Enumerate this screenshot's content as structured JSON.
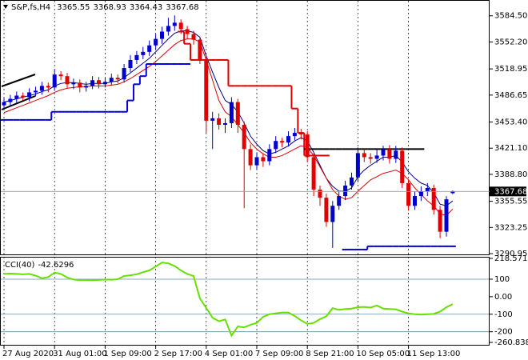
{
  "chart_data": [
    {
      "type": "candlestick",
      "title": "S&P,fs,H4",
      "categories": [
        "27 Aug 2020",
        null,
        null,
        null,
        null,
        null,
        null,
        null,
        "31 Aug 01:00",
        null,
        null,
        null,
        null,
        null,
        null,
        null,
        "1 Sep 09:00",
        null,
        null,
        null,
        null,
        null,
        null,
        null,
        "2 Sep 17:00",
        null,
        null,
        null,
        null,
        null,
        null,
        null,
        "4 Sep 01:00",
        null,
        null,
        null,
        null,
        null,
        null,
        null,
        "7 Sep 09:00",
        null,
        null,
        null,
        null,
        null,
        null,
        null,
        "8 Sep 21:00",
        null,
        null,
        null,
        null,
        null,
        null,
        null,
        "10 Sep 05:00",
        null,
        null,
        null,
        null,
        null,
        null,
        null,
        "11 Sep 13:00",
        null,
        null,
        null,
        null,
        null,
        null,
        null
      ],
      "open": [
        3474,
        3478,
        3482,
        3486,
        3484,
        3490,
        3492,
        3498,
        3496,
        3512,
        3510,
        3500,
        3502,
        3496,
        3498,
        3505,
        3500,
        3503,
        3508,
        3506,
        3520,
        3530,
        3536,
        3540,
        3548,
        3556,
        3565,
        3572,
        3576,
        3568,
        3562,
        3555,
        3530,
        3455,
        3458,
        3450,
        3452,
        3478,
        3450,
        3420,
        3400,
        3410,
        3405,
        3420,
        3430,
        3428,
        3436,
        3440,
        3438,
        3410,
        3370,
        3360,
        3330,
        3350,
        3362,
        3375,
        3385,
        3415,
        3410,
        3408,
        3412,
        3420,
        3408,
        3418,
        3378,
        3350,
        3362,
        3368,
        3372,
        3345,
        3318,
        3365.55
      ],
      "high": [
        3483,
        3487,
        3491,
        3490,
        3495,
        3497,
        3503,
        3502,
        3518,
        3516,
        3514,
        3507,
        3506,
        3503,
        3510,
        3509,
        3508,
        3513,
        3512,
        3525,
        3536,
        3541,
        3546,
        3554,
        3562,
        3571,
        3582,
        3585,
        3580,
        3572,
        3566,
        3558,
        3534,
        3466,
        3464,
        3458,
        3484,
        3482,
        3454,
        3426,
        3416,
        3415,
        3426,
        3436,
        3434,
        3442,
        3446,
        3445,
        3442,
        3414,
        3375,
        3365,
        3356,
        3368,
        3381,
        3391,
        3422,
        3420,
        3415,
        3420,
        3424,
        3425,
        3424,
        3422,
        3382,
        3368,
        3374,
        3378,
        3376,
        3350,
        3362,
        3368.93
      ],
      "low": [
        3469,
        3473,
        3477,
        3480,
        3479,
        3485,
        3487,
        3490,
        3492,
        3505,
        3495,
        3494,
        3490,
        3491,
        3494,
        3495,
        3496,
        3499,
        3501,
        3502,
        3515,
        3525,
        3531,
        3535,
        3543,
        3550,
        3560,
        3566,
        3562,
        3556,
        3549,
        3525,
        3440,
        3420,
        3444,
        3440,
        3446,
        3440,
        3347,
        3394,
        3395,
        3398,
        3400,
        3415,
        3422,
        3423,
        3431,
        3432,
        3404,
        3362,
        3350,
        3324,
        3298,
        3345,
        3357,
        3370,
        3380,
        3404,
        3402,
        3403,
        3406,
        3402,
        3403,
        3372,
        3344,
        3345,
        3356,
        3362,
        3339,
        3310,
        3312,
        3364.43
      ],
      "close": [
        3478,
        3482,
        3486,
        3484,
        3490,
        3492,
        3498,
        3496,
        3512,
        3510,
        3500,
        3502,
        3496,
        3498,
        3505,
        3500,
        3503,
        3508,
        3506,
        3520,
        3530,
        3536,
        3540,
        3548,
        3556,
        3565,
        3572,
        3576,
        3568,
        3562,
        3555,
        3530,
        3455,
        3458,
        3450,
        3452,
        3478,
        3450,
        3420,
        3400,
        3410,
        3405,
        3420,
        3430,
        3428,
        3436,
        3440,
        3438,
        3410,
        3370,
        3360,
        3330,
        3350,
        3362,
        3375,
        3385,
        3415,
        3410,
        3408,
        3412,
        3420,
        3408,
        3418,
        3378,
        3350,
        3362,
        3368,
        3372,
        3345,
        3318,
        3358,
        3367.68
      ],
      "up_color": "#0000cd",
      "down_color": "#e00000",
      "overlays": [
        {
          "style": "line",
          "color": "#000080",
          "width": 1,
          "values": [
            3478,
            3480,
            3482,
            3484,
            3486,
            3488,
            3491,
            3493,
            3498,
            3501,
            3502,
            3502,
            3501,
            3500,
            3501,
            3501,
            3501,
            3503,
            3504,
            3508,
            3514,
            3520,
            3526,
            3532,
            3540,
            3548,
            3556,
            3563,
            3566,
            3566,
            3564,
            3558,
            3535,
            3515,
            3496,
            3480,
            3475,
            3466,
            3452,
            3436,
            3426,
            3418,
            3414,
            3416,
            3420,
            3424,
            3430,
            3434,
            3430,
            3416,
            3400,
            3384,
            3374,
            3368,
            3368,
            3372,
            3386,
            3394,
            3400,
            3405,
            3410,
            3410,
            3412,
            3404,
            3392,
            3384,
            3378,
            3375,
            3366,
            3352,
            3350,
            3356
          ]
        },
        {
          "style": "line",
          "color": "#e00000",
          "width": 1,
          "values": [
            3465,
            3468,
            3471,
            3474,
            3477,
            3480,
            3483,
            3486,
            3490,
            3493,
            3495,
            3496,
            3497,
            3497,
            3498,
            3498,
            3498,
            3499,
            3500,
            3503,
            3507,
            3512,
            3517,
            3522,
            3528,
            3535,
            3542,
            3549,
            3554,
            3556,
            3556,
            3552,
            3530,
            3505,
            3480,
            3466,
            3460,
            3450,
            3440,
            3428,
            3420,
            3414,
            3410,
            3410,
            3412,
            3416,
            3420,
            3424,
            3422,
            3412,
            3398,
            3384,
            3370,
            3362,
            3358,
            3360,
            3368,
            3375,
            3382,
            3386,
            3390,
            3392,
            3394,
            3390,
            3382,
            3372,
            3364,
            3356,
            3350,
            3340,
            3338,
            3346
          ]
        },
        {
          "style": "step",
          "color": "#e00000",
          "width": 2,
          "values": [
            null,
            null,
            null,
            null,
            null,
            null,
            null,
            null,
            null,
            null,
            null,
            null,
            null,
            null,
            null,
            null,
            null,
            null,
            null,
            null,
            null,
            null,
            null,
            null,
            null,
            null,
            null,
            null,
            3565,
            3550,
            3530,
            3530,
            3530,
            3530,
            3530,
            3530,
            3498,
            3498,
            3498,
            3498,
            3498,
            3498,
            3498,
            3498,
            3498,
            3498,
            3470,
            3440,
            3412,
            3412,
            3412,
            3412,
            null,
            null,
            null,
            null,
            null,
            null,
            null,
            null,
            null,
            null,
            null,
            null,
            null,
            null,
            null,
            null,
            null,
            null,
            null,
            null
          ]
        },
        {
          "style": "step",
          "color": "#0000e0",
          "width": 2,
          "values": [
            3456,
            3456,
            3456,
            3456,
            3456,
            3456,
            3456,
            3456,
            3466,
            3466,
            3466,
            3466,
            3466,
            3466,
            3466,
            3466,
            3466,
            3466,
            3466,
            3466,
            3480,
            3500,
            3510,
            3525,
            3525,
            3525,
            3525,
            3525,
            3525,
            3525,
            null,
            null,
            null,
            null,
            null,
            null,
            null,
            null,
            null,
            null,
            null,
            null,
            null,
            null,
            null,
            null,
            null,
            null,
            null,
            null,
            null,
            null,
            null,
            null,
            3296,
            3296,
            3296,
            3296,
            3300,
            3300,
            3300,
            3300,
            3300,
            3300,
            3300,
            3300,
            3300,
            3300,
            3300,
            3300,
            3300,
            3300
          ]
        },
        {
          "style": "step",
          "color": "#000000",
          "width": 2,
          "values": [
            null,
            null,
            null,
            null,
            null,
            null,
            null,
            null,
            null,
            null,
            null,
            null,
            null,
            null,
            null,
            null,
            null,
            null,
            null,
            null,
            null,
            null,
            null,
            null,
            null,
            null,
            null,
            null,
            null,
            null,
            null,
            null,
            null,
            null,
            null,
            null,
            null,
            null,
            null,
            null,
            null,
            null,
            null,
            null,
            null,
            null,
            null,
            null,
            3420,
            3420,
            3420,
            3420,
            3420,
            3420,
            3420,
            3420,
            3420,
            3420,
            3420,
            3420,
            3420,
            3420,
            3420,
            3420,
            3420,
            3420,
            3420,
            null,
            null,
            null,
            null,
            null
          ]
        }
      ],
      "ylim": [
        3290,
        3604
      ],
      "yticks": [
        {
          "value": 3584.5,
          "label": "3584.50"
        },
        {
          "value": 3552.2,
          "label": "3552.20"
        },
        3518.95,
        3486.65,
        {
          "value": 3453.4,
          "label": "3453.40"
        },
        {
          "value": 3421.1,
          "label": "3421.10"
        },
        {
          "value": 3388.8,
          "label": "3388.80"
        },
        3355.55,
        3323.25,
        3290.95
      ],
      "grid": "x"
    },
    {
      "type": "line",
      "title": "CCI(40)",
      "color": "#66e000",
      "values": [
        130,
        132,
        130,
        128,
        130,
        120,
        105,
        112,
        138,
        130,
        110,
        98,
        95,
        95,
        94,
        96,
        98,
        97,
        100,
        118,
        122,
        128,
        140,
        150,
        172,
        195,
        190,
        175,
        150,
        130,
        118,
        -10,
        -64,
        -120,
        -140,
        -130,
        -222,
        -170,
        -175,
        -160,
        -150,
        -115,
        -100,
        -95,
        -90,
        -90,
        -110,
        -135,
        -155,
        -150,
        -128,
        -112,
        -65,
        -75,
        -70,
        -68,
        -60,
        -58,
        -62,
        -50,
        -68,
        -70,
        -72,
        -85,
        -95,
        -100,
        -102,
        -100,
        -98,
        -85,
        -60,
        -42.6296
      ],
      "ylim": [
        -260.8386,
        218.5717
      ],
      "yticks": [
        218.5717,
        100,
        {
          "value": 0,
          "label": "0.00"
        },
        -100,
        -200,
        -260.8386
      ],
      "levels": [
        100,
        -100,
        -200
      ]
    }
  ]
}
